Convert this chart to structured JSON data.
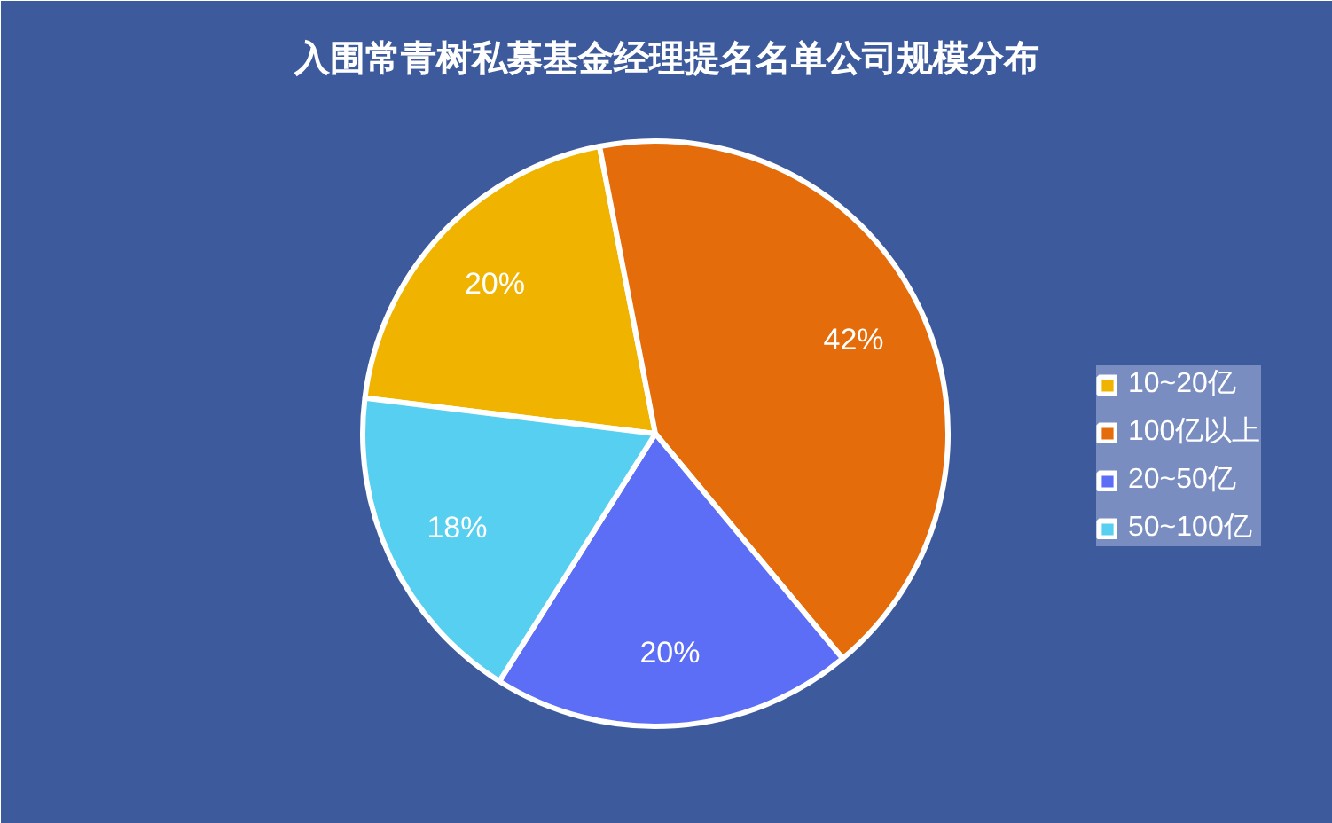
{
  "chart_data": {
    "type": "pie",
    "title": "入围常青树私募基金经理提名名单公司规模分布",
    "categories": [
      "10~20亿",
      "100亿以上",
      "20~50亿",
      "50~100亿"
    ],
    "values": [
      20,
      42,
      20,
      18
    ],
    "colors": [
      "#f0b400",
      "#e46c0a",
      "#5b6ef5",
      "#56cff0"
    ],
    "value_labels": [
      "20%",
      "42%",
      "20%",
      "18%"
    ],
    "legend": "right"
  }
}
